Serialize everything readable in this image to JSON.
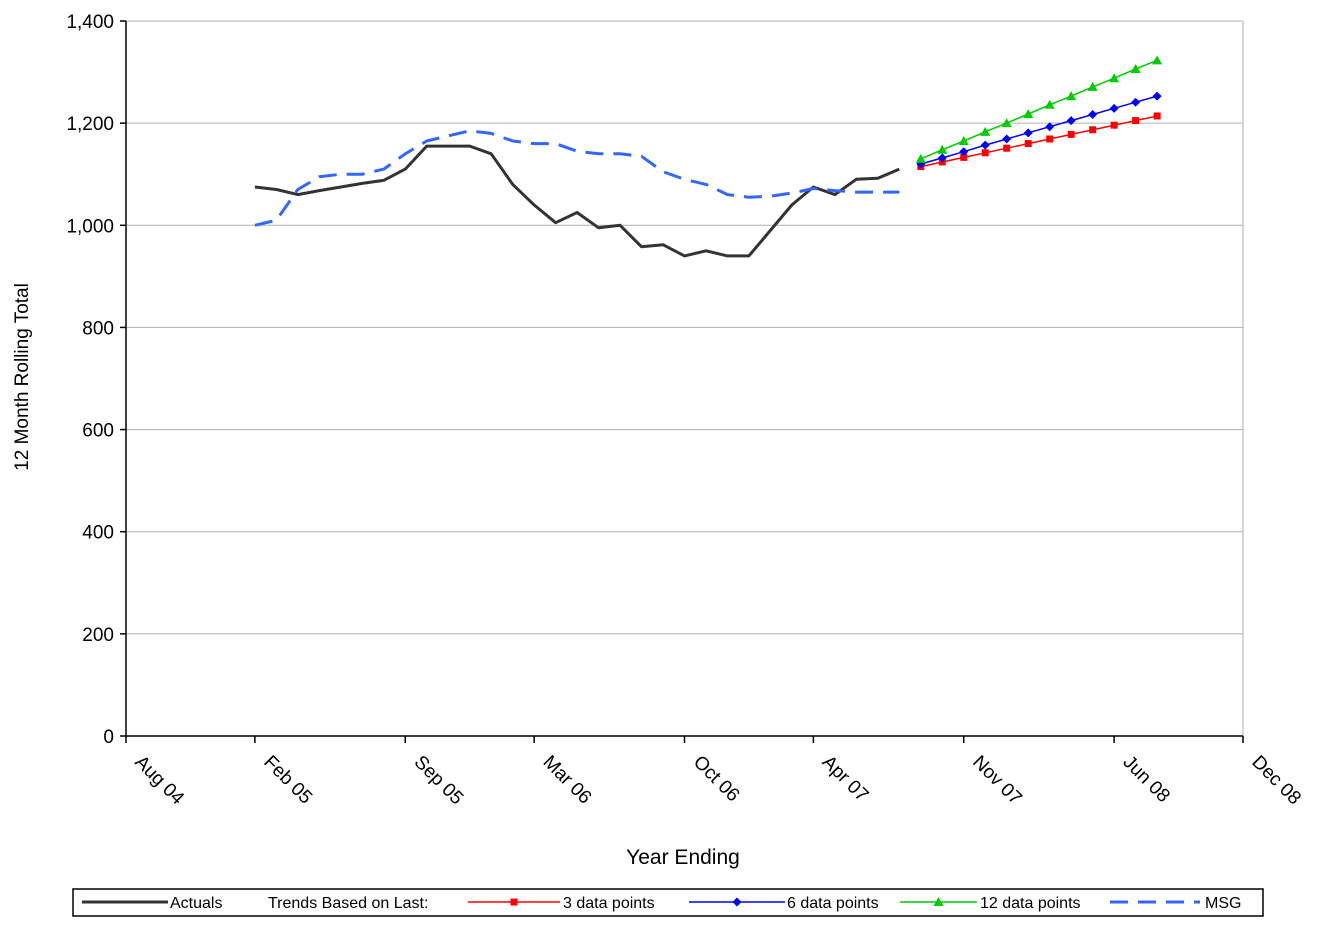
{
  "chart_data": {
    "type": "line",
    "title": "",
    "xlabel": "Year Ending",
    "ylabel": "12 Month Rolling Total",
    "x_axis": {
      "type": "date",
      "range": [
        "2004-08",
        "2008-12"
      ],
      "tick_dates": [
        "2004-08",
        "2005-02",
        "2005-09",
        "2006-03",
        "2006-10",
        "2007-04",
        "2007-11",
        "2008-06",
        "2008-12"
      ],
      "tick_labels": [
        "Aug 04",
        "Feb 05",
        "Sep 05",
        "Mar 06",
        "Oct 06",
        "Apr 07",
        "Nov 07",
        "Jun 08",
        "Dec 08"
      ]
    },
    "y_axis": {
      "range": [
        0,
        1400
      ],
      "ticks": [
        0,
        200,
        400,
        600,
        800,
        1000,
        1200,
        1400
      ],
      "tick_labels": [
        "0",
        "200",
        "400",
        "600",
        "800",
        "1,000",
        "1,200",
        "1,400"
      ]
    },
    "grid": {
      "horizontal": true,
      "vertical": false
    },
    "legend": {
      "position": "bottom",
      "label_trends": "Trends Based on Last:"
    },
    "series": [
      {
        "name": "Actuals",
        "color": "#333333",
        "style": "solid",
        "marker": "none",
        "points": [
          [
            "2005-02",
            1075
          ],
          [
            "2005-03",
            1070
          ],
          [
            "2005-04",
            1060
          ],
          [
            "2005-05",
            1068
          ],
          [
            "2005-06",
            1075
          ],
          [
            "2005-07",
            1082
          ],
          [
            "2005-08",
            1088
          ],
          [
            "2005-09",
            1110
          ],
          [
            "2005-10",
            1155
          ],
          [
            "2005-11",
            1155
          ],
          [
            "2005-12",
            1155
          ],
          [
            "2006-01",
            1140
          ],
          [
            "2006-02",
            1080
          ],
          [
            "2006-03",
            1040
          ],
          [
            "2006-04",
            1005
          ],
          [
            "2006-05",
            1025
          ],
          [
            "2006-06",
            995
          ],
          [
            "2006-07",
            1000
          ],
          [
            "2006-08",
            958
          ],
          [
            "2006-09",
            962
          ],
          [
            "2006-10",
            940
          ],
          [
            "2006-11",
            950
          ],
          [
            "2006-12",
            940
          ],
          [
            "2007-01",
            940
          ],
          [
            "2007-02",
            990
          ],
          [
            "2007-03",
            1040
          ],
          [
            "2007-04",
            1075
          ],
          [
            "2007-05",
            1060
          ],
          [
            "2007-06",
            1090
          ],
          [
            "2007-07",
            1092
          ],
          [
            "2007-08",
            1110
          ]
        ]
      },
      {
        "name": "3 data points",
        "color": "#ff0000",
        "style": "solid",
        "marker": "square",
        "points": [
          [
            "2007-09",
            1115
          ],
          [
            "2007-10",
            1124
          ],
          [
            "2007-11",
            1133
          ],
          [
            "2007-12",
            1142
          ],
          [
            "2008-01",
            1151
          ],
          [
            "2008-02",
            1160
          ],
          [
            "2008-03",
            1169
          ],
          [
            "2008-04",
            1178
          ],
          [
            "2008-05",
            1187
          ],
          [
            "2008-06",
            1196
          ],
          [
            "2008-07",
            1205
          ],
          [
            "2008-08",
            1214
          ]
        ]
      },
      {
        "name": "6 data points",
        "color": "#0000ff",
        "style": "solid",
        "marker": "diamond",
        "points": [
          [
            "2007-09",
            1120
          ],
          [
            "2007-10",
            1132
          ],
          [
            "2007-11",
            1144
          ],
          [
            "2007-12",
            1157
          ],
          [
            "2008-01",
            1169
          ],
          [
            "2008-02",
            1181
          ],
          [
            "2008-03",
            1193
          ],
          [
            "2008-04",
            1205
          ],
          [
            "2008-05",
            1217
          ],
          [
            "2008-06",
            1229
          ],
          [
            "2008-07",
            1241
          ],
          [
            "2008-08",
            1253
          ]
        ]
      },
      {
        "name": "12 data points",
        "color": "#00cc00",
        "style": "solid",
        "marker": "triangle",
        "points": [
          [
            "2007-09",
            1130
          ],
          [
            "2007-10",
            1148
          ],
          [
            "2007-11",
            1165
          ],
          [
            "2007-12",
            1183
          ],
          [
            "2008-01",
            1200
          ],
          [
            "2008-02",
            1218
          ],
          [
            "2008-03",
            1236
          ],
          [
            "2008-04",
            1253
          ],
          [
            "2008-05",
            1271
          ],
          [
            "2008-06",
            1288
          ],
          [
            "2008-07",
            1306
          ],
          [
            "2008-08",
            1323
          ]
        ]
      },
      {
        "name": "MSG",
        "color": "#3366ff",
        "style": "dashed",
        "marker": "none",
        "points": [
          [
            "2005-02",
            1000
          ],
          [
            "2005-03",
            1010
          ],
          [
            "2005-04",
            1070
          ],
          [
            "2005-05",
            1095
          ],
          [
            "2005-06",
            1100
          ],
          [
            "2005-07",
            1100
          ],
          [
            "2005-08",
            1110
          ],
          [
            "2005-09",
            1140
          ],
          [
            "2005-10",
            1165
          ],
          [
            "2005-11",
            1175
          ],
          [
            "2005-12",
            1185
          ],
          [
            "2006-01",
            1180
          ],
          [
            "2006-02",
            1165
          ],
          [
            "2006-03",
            1160
          ],
          [
            "2006-04",
            1160
          ],
          [
            "2006-05",
            1145
          ],
          [
            "2006-06",
            1140
          ],
          [
            "2006-07",
            1140
          ],
          [
            "2006-08",
            1135
          ],
          [
            "2006-09",
            1105
          ],
          [
            "2006-10",
            1090
          ],
          [
            "2006-11",
            1080
          ],
          [
            "2006-12",
            1060
          ],
          [
            "2007-01",
            1055
          ],
          [
            "2007-02",
            1057
          ],
          [
            "2007-03",
            1063
          ],
          [
            "2007-04",
            1072
          ],
          [
            "2007-05",
            1068
          ],
          [
            "2007-06",
            1065
          ],
          [
            "2007-07",
            1065
          ],
          [
            "2007-08",
            1065
          ]
        ]
      }
    ]
  }
}
